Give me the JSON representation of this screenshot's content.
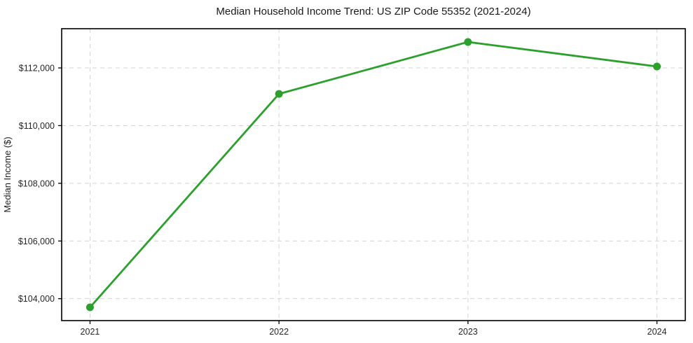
{
  "chart_data": {
    "type": "line",
    "title": "Median Household Income Trend: US ZIP Code 55352 (2021-2024)",
    "xlabel": "",
    "ylabel": "Median Income ($)",
    "x": [
      2021,
      2022,
      2023,
      2024
    ],
    "x_tick_labels": [
      "2021",
      "2022",
      "2023",
      "2024"
    ],
    "series": [
      {
        "name": "Median Household Income",
        "values": [
          103700,
          111100,
          112900,
          112050
        ]
      }
    ],
    "y_ticks": [
      104000,
      106000,
      108000,
      110000,
      112000
    ],
    "y_tick_labels": [
      "$104,000",
      "$106,000",
      "$108,000",
      "$110,000",
      "$112,000"
    ],
    "xlim": [
      2020.85,
      2024.15
    ],
    "ylim": [
      103240,
      113360
    ],
    "grid": true,
    "legend": "none",
    "line_color": "#2ca02c",
    "marker_color": "#2ca02c",
    "grid_color": "#d4d4d4",
    "spine_color": "#000000",
    "background_color": "#ffffff"
  }
}
